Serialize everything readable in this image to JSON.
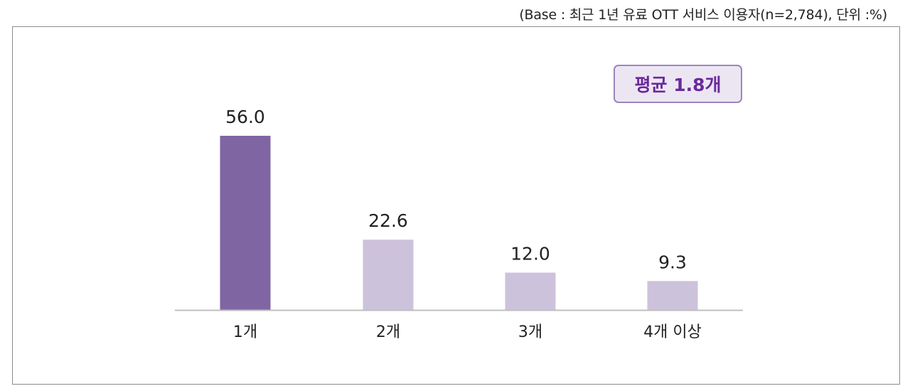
{
  "base_note": "(Base : 최근 1년 유료 OTT 서비스 이용자(n=2,784), 단위 :%)",
  "average_badge": "평균 1.8개",
  "colors": {
    "highlight_bar": "#7f66a3",
    "normal_bar": "#cdc2dc",
    "badge_text": "#6a2a9a",
    "badge_border": "#9b86bd",
    "badge_fill": "#ece6f3",
    "axis": "#bfbfbf"
  },
  "chart_data": {
    "type": "bar",
    "categories": [
      "1개",
      "2개",
      "3개",
      "4개 이상"
    ],
    "values": [
      56.0,
      22.6,
      12.0,
      9.3
    ],
    "value_labels": [
      "56.0",
      "22.6",
      "12.0",
      "9.3"
    ],
    "highlight_index": 0,
    "ylim": [
      0,
      56.0
    ],
    "grid": false,
    "legend": "none"
  }
}
